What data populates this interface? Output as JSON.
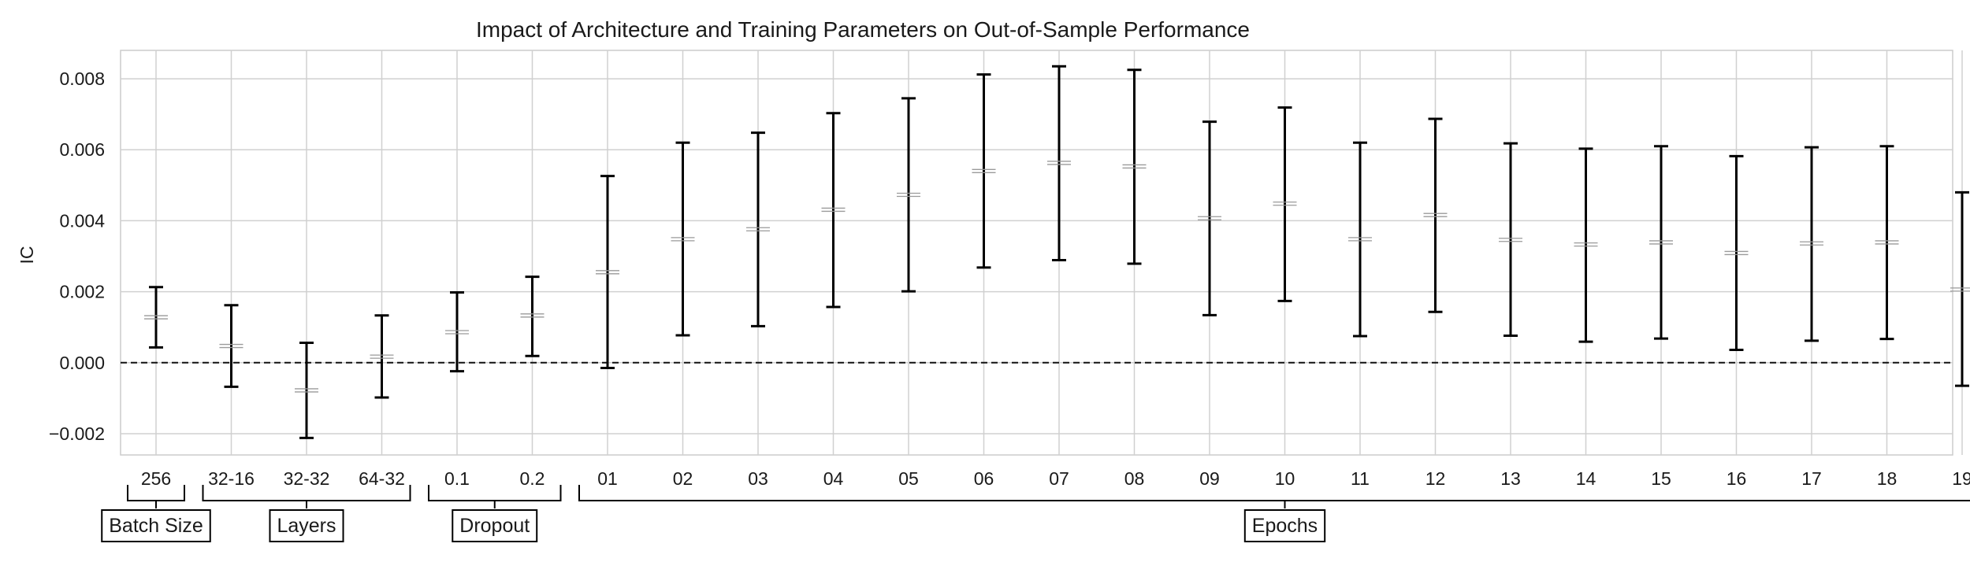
{
  "chart_data": {
    "type": "errorbar",
    "title": "Impact of Architecture and Training Parameters on Out-of-Sample Performance",
    "xlabel": "",
    "ylabel": "IC",
    "ylim": [
      -0.0026,
      0.0088
    ],
    "yticks": [
      -0.002,
      0.0,
      0.002,
      0.004,
      0.006,
      0.008
    ],
    "ytick_labels": [
      "−0.002",
      "0.000",
      "0.002",
      "0.004",
      "0.006",
      "0.008"
    ],
    "grid": true,
    "reference_line": {
      "y": 0.0,
      "style": "dashed"
    },
    "categories": [
      "256",
      "32-16",
      "32-32",
      "64-32",
      "0.1",
      "0.2",
      "01",
      "02",
      "03",
      "04",
      "05",
      "06",
      "07",
      "08",
      "09",
      "10",
      "11",
      "12",
      "13",
      "14",
      "15",
      "16",
      "17",
      "18",
      "19"
    ],
    "mean": [
      0.00128,
      0.00047,
      -0.00078,
      0.00017,
      0.00086,
      0.00133,
      0.00255,
      0.00348,
      0.00376,
      0.00431,
      0.00473,
      0.0054,
      0.00563,
      0.00553,
      0.00407,
      0.00448,
      0.00348,
      0.00416,
      0.00346,
      0.00333,
      0.00339,
      0.00309,
      0.00336,
      0.00339,
      0.00206
    ],
    "lower": [
      0.00043,
      -0.00068,
      -0.00212,
      -0.00098,
      -0.00024,
      0.00019,
      -0.00015,
      0.00077,
      0.00103,
      0.00157,
      0.00201,
      0.00268,
      0.00289,
      0.00279,
      0.00134,
      0.00174,
      0.00075,
      0.00143,
      0.00076,
      0.00059,
      0.00068,
      0.00036,
      0.00062,
      0.00067,
      -0.00065
    ],
    "upper": [
      0.00213,
      0.00162,
      0.00056,
      0.00133,
      0.00198,
      0.00242,
      0.00526,
      0.0062,
      0.00648,
      0.00703,
      0.00745,
      0.00812,
      0.00835,
      0.00825,
      0.00679,
      0.00719,
      0.0062,
      0.00687,
      0.00618,
      0.00603,
      0.0061,
      0.00582,
      0.00607,
      0.0061,
      0.0048
    ],
    "groups": [
      {
        "label": "Batch Size",
        "start": 0,
        "end": 0
      },
      {
        "label": "Layers",
        "start": 1,
        "end": 3
      },
      {
        "label": "Dropout",
        "start": 4,
        "end": 5
      },
      {
        "label": "Epochs",
        "start": 6,
        "end": 24
      }
    ],
    "colors": {
      "errorbar": "#000000",
      "mean_marker": "#9a9a9a",
      "grid": "#d0d0d0",
      "frame": "#cccccc",
      "reference_line": "#111111"
    }
  }
}
